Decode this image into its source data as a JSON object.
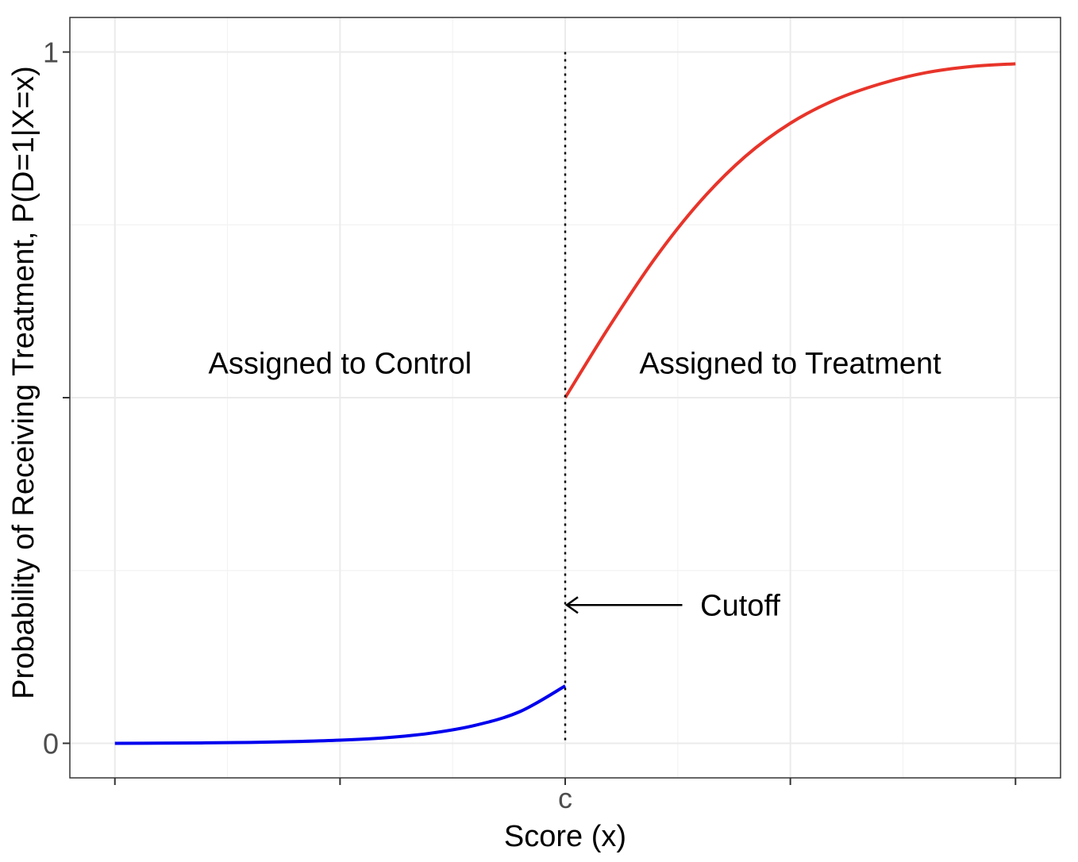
{
  "chart_data": {
    "type": "line",
    "xlabel": "Score (x)",
    "ylabel": "Probability of Receiving Treatment, P(D=1|X=x)",
    "xlim": [
      -1.1,
      1.1
    ],
    "ylim": [
      -0.05,
      1.05
    ],
    "x_ticks": [
      {
        "value": -1,
        "label": ""
      },
      {
        "value": -0.5,
        "label": ""
      },
      {
        "value": 0,
        "label": "c"
      },
      {
        "value": 0.5,
        "label": ""
      },
      {
        "value": 1,
        "label": ""
      }
    ],
    "y_ticks": [
      {
        "value": 0,
        "label": "0"
      },
      {
        "value": 0.5,
        "label": ""
      },
      {
        "value": 1,
        "label": "1"
      }
    ],
    "grid": true,
    "cutoff": 0,
    "series": [
      {
        "color": "#0000ee",
        "x": [
          -1,
          -0.9,
          -0.8,
          -0.7,
          -0.6,
          -0.5,
          -0.4,
          -0.3,
          -0.2,
          -0.1,
          0
        ],
        "y": [
          0,
          0.0002,
          0.0006,
          0.0013,
          0.0025,
          0.0045,
          0.008,
          0.0145,
          0.026,
          0.046,
          0.083
        ]
      },
      {
        "color": "#e8342a",
        "x": [
          0,
          0.1,
          0.2,
          0.3,
          0.4,
          0.5,
          0.6,
          0.7,
          0.8,
          0.9,
          1
        ],
        "y": [
          0.5,
          0.605,
          0.702,
          0.784,
          0.849,
          0.897,
          0.931,
          0.954,
          0.97,
          0.979,
          0.983
        ]
      }
    ],
    "annotations": {
      "control": {
        "text": "Assigned to Control",
        "x": -0.5,
        "y": 0.55
      },
      "treatment": {
        "text": "Assigned to Treatment",
        "x": 0.5,
        "y": 0.55
      },
      "cutoff": {
        "text": "Cutoff",
        "x": 0.3,
        "y": 0.2,
        "arrow_from_x": 0.26,
        "arrow_to_x": 0
      }
    }
  }
}
